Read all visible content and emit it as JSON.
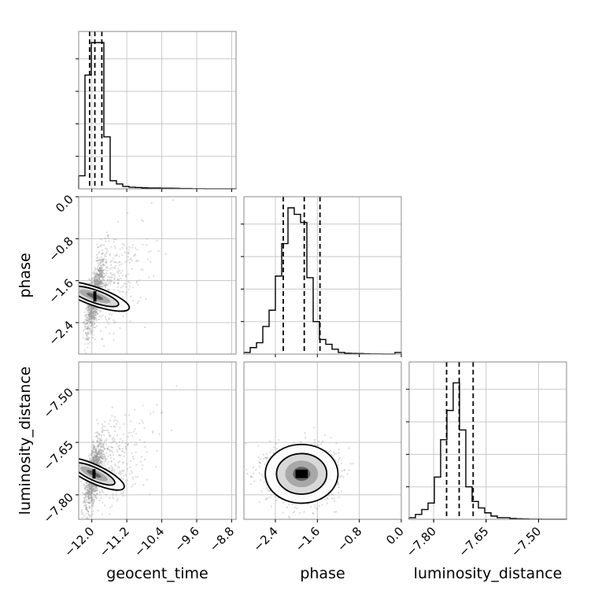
{
  "chart_data": {
    "type": "corner",
    "parameters": [
      "geocent_time",
      "phase",
      "luminosity_distance"
    ],
    "axis_labels": {
      "geocent_time": "geocent_time",
      "phase": "phase",
      "luminosity_distance": "luminosity_distance"
    },
    "ranges": {
      "geocent_time": [
        -12.3,
        -8.7
      ],
      "phase": [
        -3.0,
        0.0
      ],
      "luminosity_distance": [
        -7.87,
        -7.42
      ]
    },
    "ticks": {
      "geocent_time": [
        "−12.0",
        "−11.2",
        "−10.4",
        "−9.6",
        "−8.8"
      ],
      "phase": [
        "−2.4",
        "−1.6",
        "−0.8",
        "0.0"
      ],
      "luminosity_distance": [
        "−7.80",
        "−7.65",
        "−7.50"
      ]
    },
    "tick_values": {
      "geocent_time": [
        -12.0,
        -11.2,
        -10.4,
        -9.6,
        -8.8
      ],
      "phase": [
        -2.4,
        -1.6,
        -0.8,
        0.0
      ],
      "luminosity_distance": [
        -7.8,
        -7.65,
        -7.5
      ]
    },
    "quantiles": {
      "geocent_time": [
        -12.05,
        -11.93,
        -11.77
      ],
      "phase": [
        -2.25,
        -1.85,
        -1.55
      ],
      "luminosity_distance": [
        -7.763,
        -7.727,
        -7.687
      ]
    },
    "histograms": {
      "geocent_time": [
        0.08,
        0.7,
        0.9,
        0.9,
        0.32,
        0.05,
        0.03,
        0.015,
        0.01,
        0.008,
        0.006,
        0.005,
        0.005,
        0.004,
        0.004,
        0.003,
        0.002,
        0.002,
        0.001,
        0.001,
        0.0005,
        0.0005,
        0.0003,
        0.0002,
        0.0002
      ],
      "phase": [
        0.01,
        0.04,
        0.07,
        0.17,
        0.27,
        0.48,
        0.68,
        0.9,
        0.86,
        0.81,
        0.47,
        0.2,
        0.09,
        0.06,
        0.03,
        0.01,
        0.005,
        0.004,
        0.003,
        0.002,
        0.001,
        0.001,
        0.0005,
        0.0005,
        0.01
      ],
      "luminosity_distance": [
        0.01,
        0.03,
        0.06,
        0.1,
        0.26,
        0.49,
        0.67,
        0.84,
        0.55,
        0.2,
        0.11,
        0.07,
        0.04,
        0.02,
        0.01,
        0.01,
        0.005,
        0.003,
        0.002,
        0.001,
        0.001,
        0.0005,
        0.0003,
        0.0002,
        0.0001
      ]
    },
    "grid": true
  }
}
